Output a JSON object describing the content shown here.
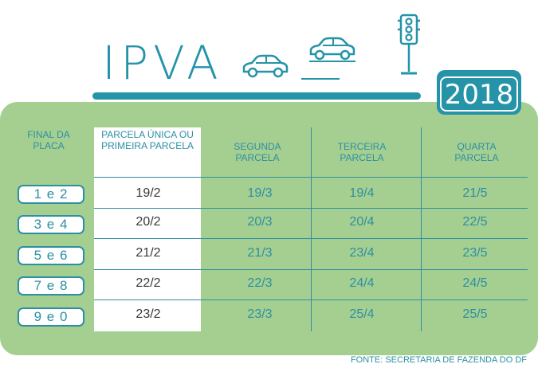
{
  "title": "IPVA",
  "year": "2018",
  "headers": {
    "plate": "FINAL DA PLACA",
    "first": "PARCELA ÚNICA OU PRIMEIRA PARCELA",
    "second": "SEGUNDA PARCELA",
    "third": "TERCEIRA PARCELA",
    "fourth": "QUARTA PARCELA"
  },
  "rows": [
    {
      "plate": "1 e 2",
      "first": "19/2",
      "second": "19/3",
      "third": "19/4",
      "fourth": "21/5"
    },
    {
      "plate": "3 e 4",
      "first": "20/2",
      "second": "20/3",
      "third": "20/4",
      "fourth": "22/5"
    },
    {
      "plate": "5 e 6",
      "first": "21/2",
      "second": "21/3",
      "third": "23/4",
      "fourth": "23/5"
    },
    {
      "plate": "7 e 8",
      "first": "22/2",
      "second": "22/3",
      "third": "24/4",
      "fourth": "24/5"
    },
    {
      "plate": "9 e 0",
      "first": "23/2",
      "second": "23/3",
      "third": "25/4",
      "fourth": "25/5"
    }
  ],
  "source": "FONTE: SECRETARIA DE FAZENDA DO DF",
  "icons": [
    "car-icon",
    "car-icon",
    "traffic-light-icon"
  ],
  "colors": {
    "accent": "#2593a8",
    "panel": "#a5cf91",
    "text_dark": "#3a3a3a"
  }
}
